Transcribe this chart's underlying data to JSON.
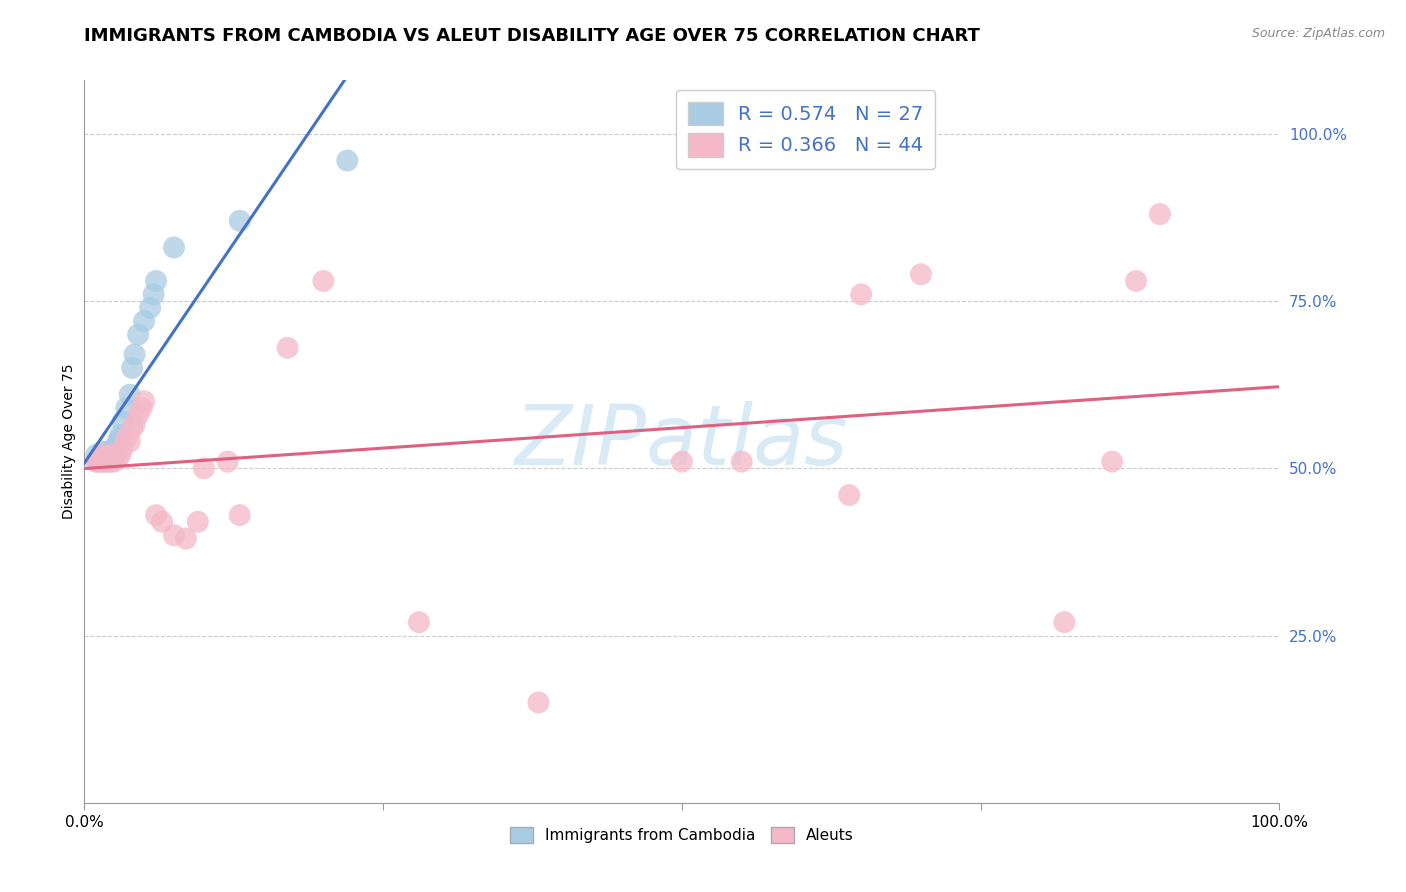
{
  "title": "IMMIGRANTS FROM CAMBODIA VS ALEUT DISABILITY AGE OVER 75 CORRELATION CHART",
  "source": "Source: ZipAtlas.com",
  "ylabel": "Disability Age Over 75",
  "legend_label1": "Immigrants from Cambodia",
  "legend_label2": "Aleuts",
  "r1": 0.574,
  "n1": 27,
  "r2": 0.366,
  "n2": 44,
  "blue_color": "#a8cce4",
  "pink_color": "#f4b8c8",
  "blue_line_color": "#4472c4",
  "pink_line_color": "#e06080",
  "watermark_color": "#d8eaf5",
  "blue_x": [
    0.01,
    0.01,
    0.015,
    0.015,
    0.018,
    0.02,
    0.02,
    0.022,
    0.022,
    0.025,
    0.025,
    0.028,
    0.03,
    0.03,
    0.032,
    0.035,
    0.038,
    0.04,
    0.042,
    0.045,
    0.05,
    0.055,
    0.058,
    0.06,
    0.075,
    0.13,
    0.22
  ],
  "blue_y": [
    0.51,
    0.52,
    0.51,
    0.525,
    0.515,
    0.515,
    0.525,
    0.515,
    0.52,
    0.52,
    0.53,
    0.54,
    0.545,
    0.55,
    0.57,
    0.59,
    0.61,
    0.65,
    0.67,
    0.7,
    0.72,
    0.74,
    0.76,
    0.78,
    0.83,
    0.87,
    0.96
  ],
  "pink_x": [
    0.01,
    0.012,
    0.013,
    0.015,
    0.015,
    0.018,
    0.018,
    0.02,
    0.02,
    0.022,
    0.022,
    0.025,
    0.025,
    0.028,
    0.03,
    0.032,
    0.035,
    0.038,
    0.04,
    0.042,
    0.045,
    0.048,
    0.05,
    0.06,
    0.065,
    0.075,
    0.085,
    0.095,
    0.1,
    0.12,
    0.13,
    0.17,
    0.2,
    0.28,
    0.38,
    0.5,
    0.55,
    0.64,
    0.65,
    0.7,
    0.82,
    0.86,
    0.88,
    0.9
  ],
  "pink_y": [
    0.51,
    0.515,
    0.51,
    0.51,
    0.52,
    0.51,
    0.515,
    0.51,
    0.51,
    0.52,
    0.51,
    0.51,
    0.52,
    0.515,
    0.52,
    0.53,
    0.545,
    0.54,
    0.56,
    0.565,
    0.58,
    0.59,
    0.6,
    0.43,
    0.42,
    0.4,
    0.395,
    0.42,
    0.5,
    0.51,
    0.43,
    0.68,
    0.78,
    0.27,
    0.15,
    0.51,
    0.51,
    0.46,
    0.76,
    0.79,
    0.27,
    0.51,
    0.78,
    0.88
  ],
  "xlim": [
    0.0,
    1.0
  ],
  "ylim": [
    0.0,
    1.08
  ],
  "yticks": [
    0.25,
    0.5,
    0.75,
    1.0
  ],
  "ytick_labels": [
    "25.0%",
    "50.0%",
    "75.0%",
    "100.0%"
  ],
  "title_fontsize": 13,
  "label_fontsize": 10,
  "tick_fontsize": 11,
  "legend_fontsize": 14
}
